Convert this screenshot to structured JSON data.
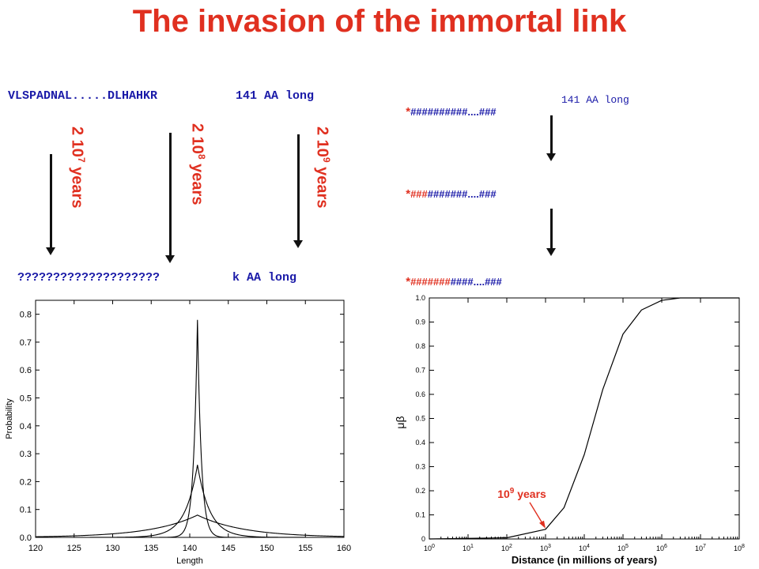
{
  "title": "The invasion of the immortal link",
  "left": {
    "sequence": "VLSPADNAL.....DLHAHKR",
    "length_label": "141 AA long",
    "unknown_sequence": "????????????????????",
    "unknown_length": "k AA long",
    "arrows": [
      {
        "prefix": "2 10",
        "exp": "7",
        "suffix": " years"
      },
      {
        "prefix": "2 10",
        "exp": "8",
        "suffix": " years"
      },
      {
        "prefix": "2 10",
        "exp": "9",
        "suffix": " years"
      }
    ]
  },
  "right": {
    "lines": [
      {
        "star": "*",
        "red_part": "",
        "blue_part": "##########",
        "tail": "....###",
        "length": "141 AA long"
      },
      {
        "star": "*",
        "red_part": "###",
        "blue_part": "#######",
        "tail": "....###",
        "length": ""
      },
      {
        "star": "*",
        "red_part": "#######",
        "blue_part": "####",
        "tail": "....###",
        "length": ""
      }
    ]
  },
  "chart_data": [
    {
      "type": "line",
      "title": "",
      "xlabel": "Length",
      "ylabel": "Probability",
      "xlim": [
        120,
        160
      ],
      "ylim": [
        0,
        0.85
      ],
      "xticks": [
        "120",
        "125",
        "130",
        "135",
        "140",
        "145",
        "150",
        "155",
        "160"
      ],
      "yticks": [
        "0.0",
        "0.1",
        "0.2",
        "0.3",
        "0.4",
        "0.5",
        "0.6",
        "0.7",
        "0.8"
      ],
      "grid": false,
      "series": [
        {
          "center": 141,
          "peak": 0.78,
          "width": 0.5
        },
        {
          "center": 141,
          "peak": 0.26,
          "width": 1.6
        },
        {
          "center": 141,
          "peak": 0.08,
          "width": 6
        }
      ]
    },
    {
      "type": "line",
      "title": "",
      "xlabel": "Distance (in millions of years)",
      "ylabel": "μβ",
      "xscale": "log",
      "xlim": [
        1,
        100000000
      ],
      "ylim": [
        0,
        1.0
      ],
      "xtick_exps": [
        "0",
        "1",
        "2",
        "3",
        "4",
        "5",
        "6",
        "7",
        "8"
      ],
      "yticks": [
        "0",
        "0.1",
        "0.2",
        "0.3",
        "0.4",
        "0.5",
        "0.6",
        "0.7",
        "0.8",
        "0.9",
        "1.0"
      ],
      "grid": false,
      "series": [
        {
          "x": [
            1,
            100,
            1000,
            3000,
            10000,
            30000,
            100000,
            300000,
            1000000,
            3000000,
            10000000,
            100000000
          ],
          "y": [
            0.0,
            0.005,
            0.04,
            0.13,
            0.35,
            0.62,
            0.85,
            0.95,
            0.99,
            1.0,
            1.0,
            1.0
          ]
        }
      ],
      "annotation": {
        "text_base": "10",
        "text_exp": "9",
        "text_suffix": " years",
        "x": 1000,
        "y": 0.04
      }
    }
  ]
}
